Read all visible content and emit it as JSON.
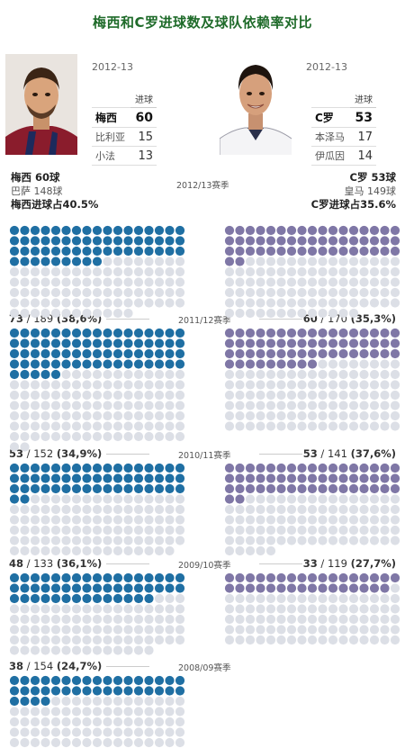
{
  "title": "梅西和C罗进球数及球队依赖率对比",
  "header": {
    "messi": {
      "season": "2012-13",
      "col_label": "进球",
      "rows": [
        {
          "name": "梅西",
          "goals": "60"
        },
        {
          "name": "比利亚",
          "goals": "15"
        },
        {
          "name": "小法",
          "goals": "13"
        }
      ]
    },
    "ronaldo": {
      "season": "2012-13",
      "col_label": "进球",
      "rows": [
        {
          "name": "C罗",
          "goals": "53"
        },
        {
          "name": "本泽马",
          "goals": "17"
        },
        {
          "name": "伊瓜因",
          "goals": "14"
        }
      ]
    }
  },
  "summary_2012": {
    "left": {
      "line1": "梅西 60球",
      "line2": "巴萨 148球",
      "line3": "梅西进球占40.5%"
    },
    "right": {
      "line1": "C罗 53球",
      "line2": "皇马 149球",
      "line3": "C罗进球占35.6%"
    }
  },
  "ratio_labels": {
    "s2011_left": {
      "a": "73",
      "b": " / 189 ",
      "c": "(38,6%)"
    },
    "s2011_right": {
      "a": "60",
      "b": " / 170 ",
      "c": "(35,3%)"
    },
    "s2010_left": {
      "a": "53",
      "b": " / 152 ",
      "c": "(34,9%)"
    },
    "s2010_right": {
      "a": "53",
      "b": " / 141 ",
      "c": "(37,6%)"
    },
    "s2009_left": {
      "a": "48",
      "b": " / 133 ",
      "c": "(36,1%)"
    },
    "s2009_right": {
      "a": "33",
      "b": " / 119 ",
      "c": "(27,7%)"
    },
    "s2008_left": {
      "a": "38",
      "b": " / 154 ",
      "c": "(24,7%)"
    }
  },
  "colors": {
    "messi": "#1f6fa3",
    "ronaldo": "#7f77a6",
    "empty": "#dcdfe6",
    "title": "#1f6b2a"
  },
  "chart_data": {
    "type": "dot-matrix",
    "dots_per_row": 17,
    "seasons": [
      {
        "season": "2012/13赛季",
        "messi": {
          "player_goals": 60,
          "team_goals": 148,
          "share_pct": 40.5
        },
        "ronaldo": {
          "player_goals": 53,
          "team_goals": 149,
          "share_pct": 35.6
        }
      },
      {
        "season": "2011/12赛季",
        "messi": {
          "player_goals": 73,
          "team_goals": 189,
          "share_pct": 38.6
        },
        "ronaldo": {
          "player_goals": 60,
          "team_goals": 170,
          "share_pct": 35.3
        }
      },
      {
        "season": "2010/11赛季",
        "messi": {
          "player_goals": 53,
          "team_goals": 152,
          "share_pct": 34.9
        },
        "ronaldo": {
          "player_goals": 53,
          "team_goals": 141,
          "share_pct": 37.6
        }
      },
      {
        "season": "2009/10赛季",
        "messi": {
          "player_goals": 48,
          "team_goals": 133,
          "share_pct": 36.1
        },
        "ronaldo": {
          "player_goals": 33,
          "team_goals": 119,
          "share_pct": 27.7
        }
      },
      {
        "season": "2008/09赛季",
        "messi": {
          "player_goals": 38,
          "team_goals": 154,
          "share_pct": 24.7
        },
        "ronaldo": null
      }
    ]
  }
}
